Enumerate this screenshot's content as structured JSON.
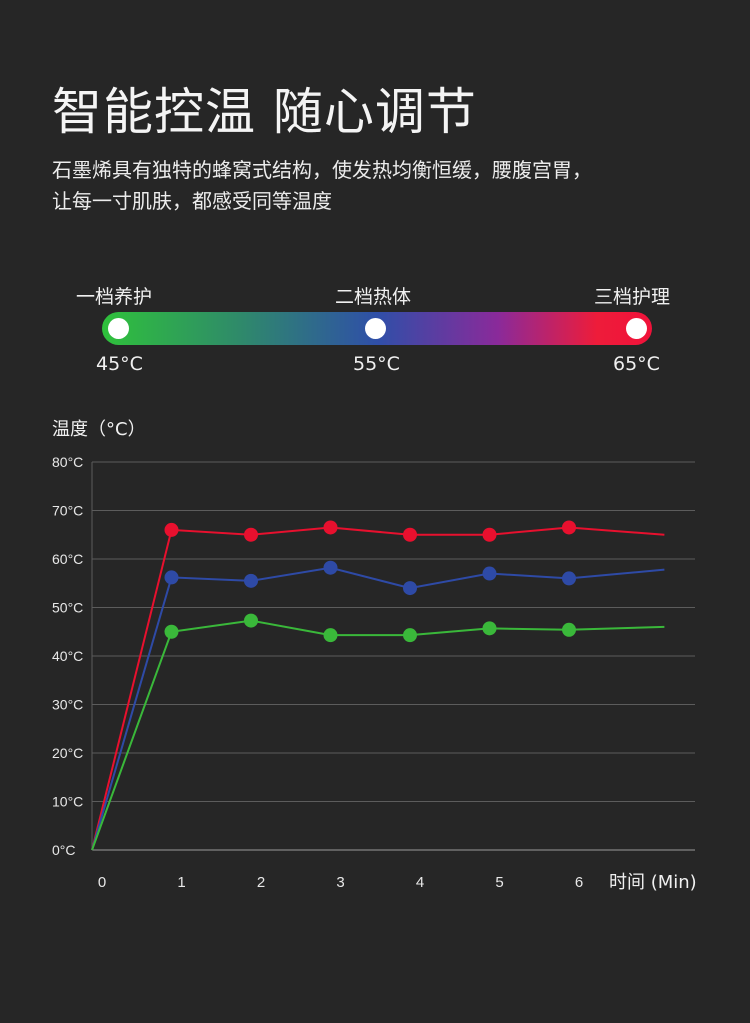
{
  "title": "智能控温 随心调节",
  "subtitle_lines": [
    "石墨烯具有独特的蜂窝式结构，使发热均衡恒缓，腰腹宫胃，",
    "让每一寸肌肤，都感受同等温度"
  ],
  "levels": [
    {
      "label": "一档养护",
      "temp": "45°C",
      "color": "#2fc13b"
    },
    {
      "label": "二档热体",
      "temp": "55°C",
      "color": "#2f4fa8"
    },
    {
      "label": "三档护理",
      "temp": "65°C",
      "color": "#f0123a"
    }
  ],
  "chart_data": {
    "type": "line",
    "ylabel": "温度（°C）",
    "xlabel": "时间 (Min)",
    "x_ticks": [
      "0",
      "1",
      "2",
      "3",
      "4",
      "5",
      "6"
    ],
    "y_ticks": [
      "0°C",
      "10°C",
      "20°C",
      "30°C",
      "40°C",
      "50°C",
      "60°C",
      "70°C",
      "80°C"
    ],
    "ylim": [
      0,
      80
    ],
    "xlim": [
      0,
      7.2
    ],
    "grid": "horizontal",
    "series": [
      {
        "color": "#e8102e",
        "x": [
          0,
          1,
          2,
          3,
          4,
          5,
          6,
          7.2
        ],
        "values": [
          0,
          66,
          65,
          66.5,
          65,
          65,
          66.5,
          65
        ],
        "markers": [
          false,
          true,
          true,
          true,
          true,
          true,
          true,
          false
        ]
      },
      {
        "color": "#2e4aa6",
        "x": [
          0,
          1,
          2,
          3,
          4,
          5,
          6,
          7.2
        ],
        "values": [
          0,
          56.2,
          55.5,
          58.2,
          54,
          57,
          56,
          57.8
        ],
        "markers": [
          false,
          true,
          true,
          true,
          true,
          true,
          true,
          false
        ]
      },
      {
        "color": "#3ab83a",
        "x": [
          0,
          1,
          2,
          3,
          4,
          5,
          6,
          7.2
        ],
        "values": [
          0,
          45,
          47.3,
          44.3,
          44.3,
          45.7,
          45.4,
          46
        ],
        "markers": [
          false,
          true,
          true,
          true,
          true,
          true,
          true,
          false
        ]
      }
    ]
  }
}
